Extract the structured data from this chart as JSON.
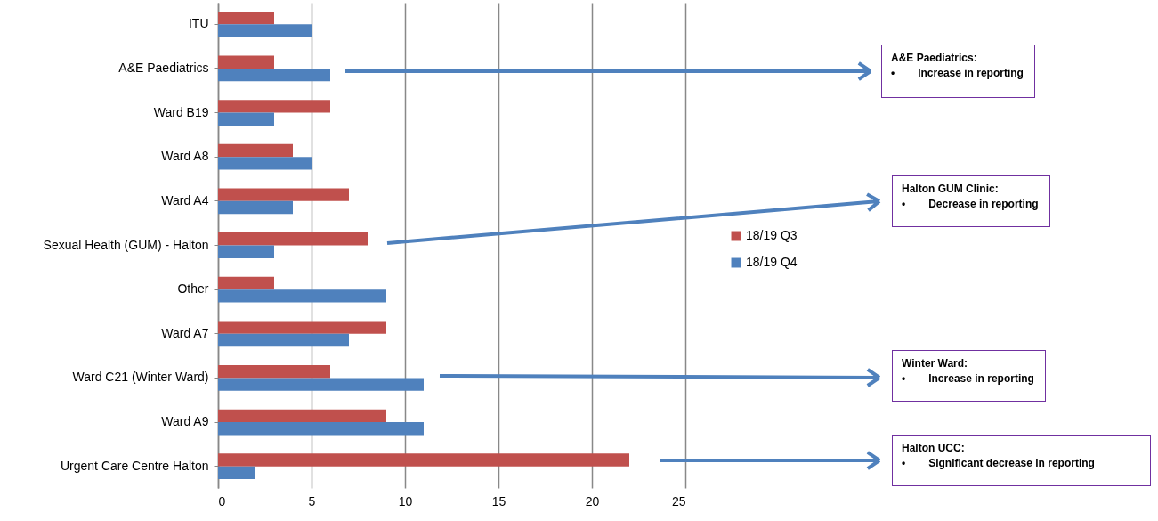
{
  "chart_data": {
    "type": "bar",
    "orientation": "horizontal",
    "categories": [
      "ITU",
      "A&E Paediatrics",
      "Ward B19",
      "Ward A8",
      "Ward A4",
      "Sexual Health (GUM) - Halton",
      "Other",
      "Ward A7",
      "Ward C21 (Winter Ward)",
      "Ward A9",
      "Urgent Care Centre Halton"
    ],
    "series": [
      {
        "name": "18/19 Q3",
        "color": "#c0504d",
        "values": [
          3,
          3,
          6,
          4,
          7,
          8,
          3,
          9,
          6,
          9,
          22
        ]
      },
      {
        "name": "18/19 Q4",
        "color": "#4f81bd",
        "values": [
          5,
          6,
          3,
          5,
          4,
          3,
          9,
          7,
          11,
          11,
          2
        ]
      }
    ],
    "xlim": [
      0,
      25
    ],
    "xticks": [
      0,
      5,
      10,
      15,
      20,
      25
    ],
    "grid": "x",
    "legend": "right",
    "annotations": [
      "A&E Paediatrics:\n•\tIncrease in reporting",
      "Halton GUM Clinic:\n•\tDecrease in reporting",
      "Winter Ward:\n•\tIncrease in reporting",
      "Halton UCC:\n•\tSignificant decrease in reporting"
    ]
  }
}
